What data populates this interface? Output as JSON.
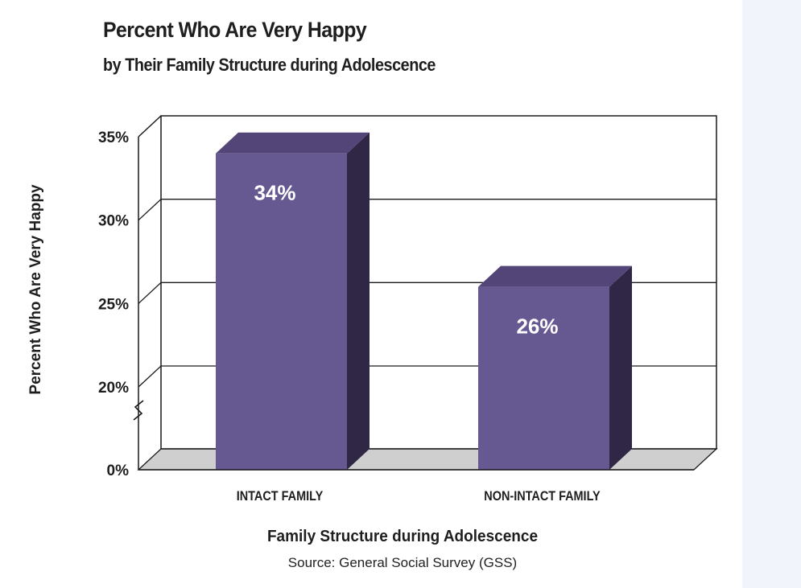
{
  "title": "Percent Who Are Very Happy",
  "subtitle": "by Their Family Structure during Adolescence",
  "source": "Source: General Social Survey (GSS)",
  "colors": {
    "bar_front": "#665890",
    "bar_top": "#544578",
    "bar_side": "#2f2745",
    "floor": "#cfcfcf",
    "grid": "#1a1a1a",
    "label": "#ffffff"
  },
  "chart_data": {
    "type": "bar",
    "title": "Percent Who Are Very Happy",
    "subtitle": "by Their Family Structure during Adolescence",
    "xlabel": "Family Structure during Adolescence",
    "ylabel": "Percent Who Are Very Happy",
    "categories": [
      "INTACT FAMILY",
      "NON-INTACT FAMILY"
    ],
    "values": [
      34,
      26
    ],
    "data_labels": [
      "34%",
      "26%"
    ],
    "yticks": [
      0,
      20,
      25,
      30,
      35
    ],
    "ytick_labels": [
      "0%",
      "20%",
      "25%",
      "30%",
      "35%"
    ],
    "ylim": [
      0,
      35
    ],
    "axis_break": "between 0% and 20%",
    "grid": true,
    "style": "3d",
    "legend": "none"
  }
}
